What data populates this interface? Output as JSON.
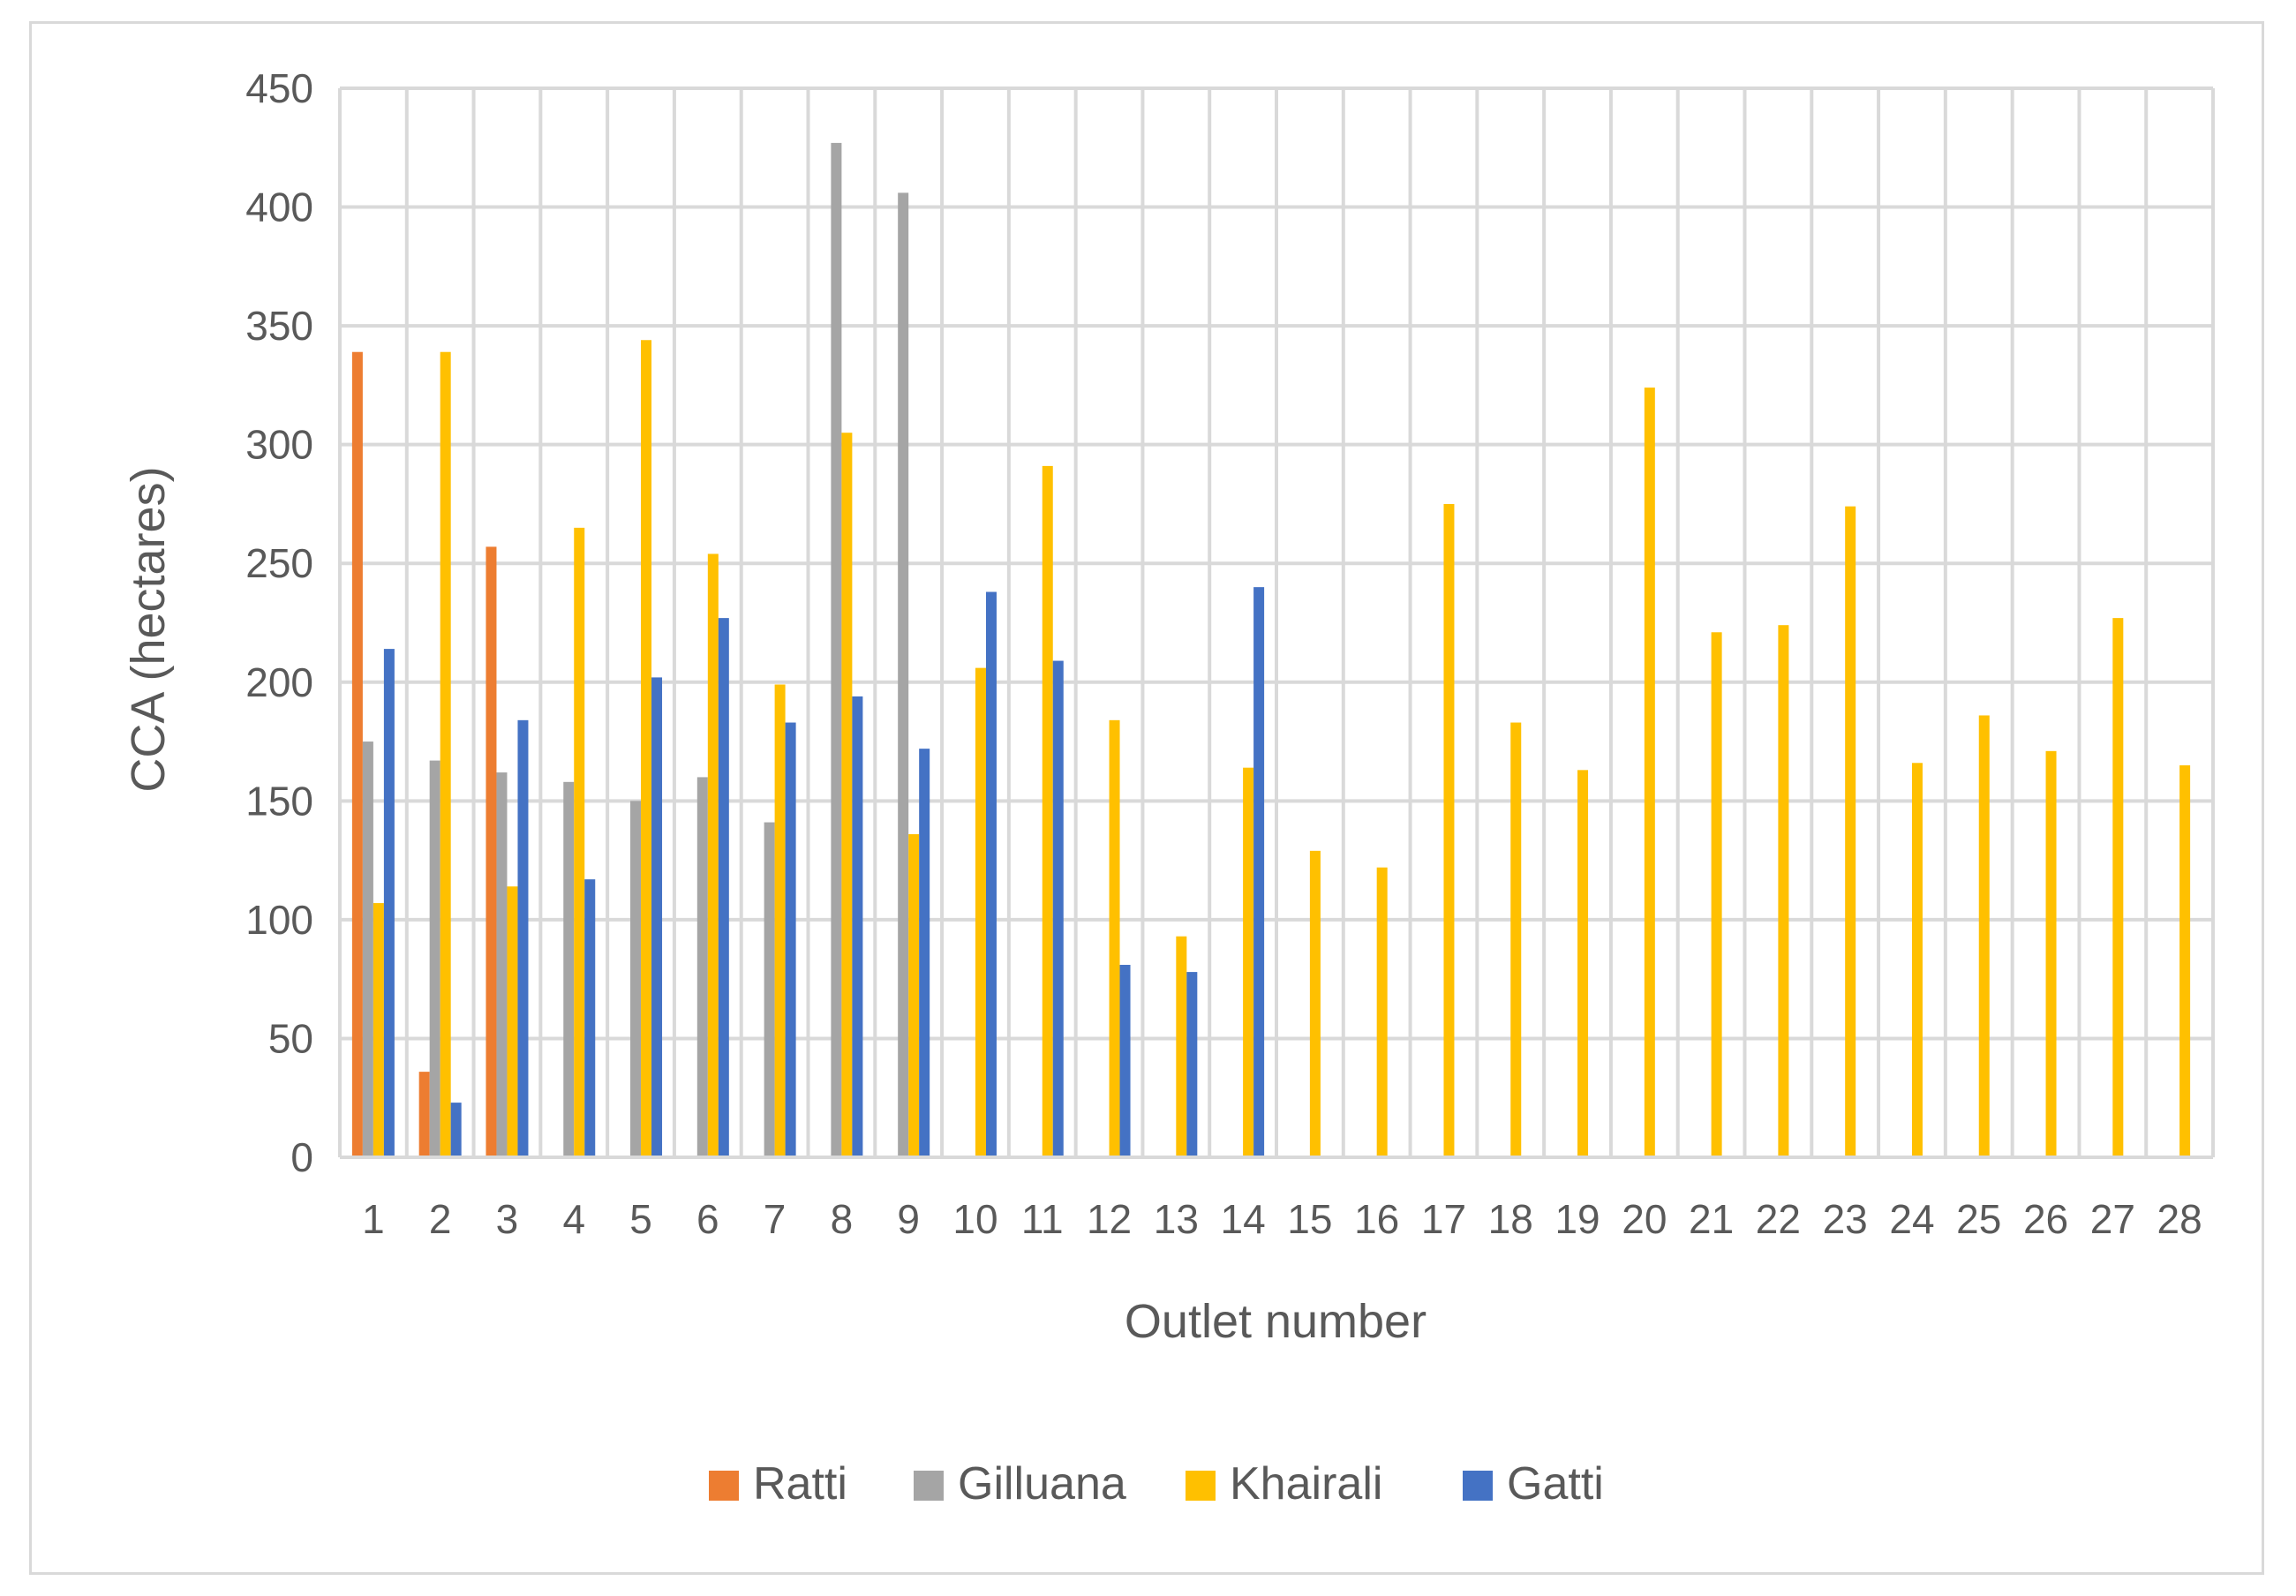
{
  "chart_data": {
    "type": "bar",
    "title": "",
    "xlabel": "Outlet number",
    "ylabel": "CCA (hectares)",
    "ylim": [
      0,
      450
    ],
    "yticks": [
      0,
      50,
      100,
      150,
      200,
      250,
      300,
      350,
      400,
      450
    ],
    "grid": true,
    "legend_position": "bottom",
    "categories": [
      "1",
      "2",
      "3",
      "4",
      "5",
      "6",
      "7",
      "8",
      "9",
      "10",
      "11",
      "12",
      "13",
      "14",
      "15",
      "16",
      "17",
      "18",
      "19",
      "20",
      "21",
      "22",
      "23",
      "24",
      "25",
      "26",
      "27",
      "28"
    ],
    "series": [
      {
        "name": "Ratti",
        "color": "#ED7D31",
        "values": [
          339,
          36,
          257,
          0,
          0,
          0,
          0,
          0,
          0,
          0,
          0,
          0,
          0,
          0,
          0,
          0,
          0,
          0,
          0,
          0,
          0,
          0,
          0,
          0,
          0,
          0,
          0,
          0
        ]
      },
      {
        "name": "Gilluana",
        "color": "#A5A5A5",
        "values": [
          175,
          167,
          162,
          158,
          150,
          160,
          141,
          427,
          406,
          0,
          0,
          0,
          0,
          0,
          0,
          0,
          0,
          0,
          0,
          0,
          0,
          0,
          0,
          0,
          0,
          0,
          0,
          0
        ]
      },
      {
        "name": "Khairali",
        "color": "#FFC000",
        "values": [
          107,
          339,
          114,
          265,
          344,
          254,
          199,
          305,
          136,
          206,
          291,
          184,
          93,
          164,
          129,
          122,
          275,
          183,
          163,
          324,
          221,
          224,
          274,
          166,
          186,
          171,
          227,
          165
        ]
      },
      {
        "name": "Gatti",
        "color": "#4472C4",
        "values": [
          214,
          23,
          184,
          117,
          202,
          227,
          183,
          194,
          172,
          238,
          209,
          81,
          78,
          240,
          0,
          0,
          0,
          0,
          0,
          0,
          0,
          0,
          0,
          0,
          0,
          0,
          0,
          0
        ]
      }
    ]
  }
}
